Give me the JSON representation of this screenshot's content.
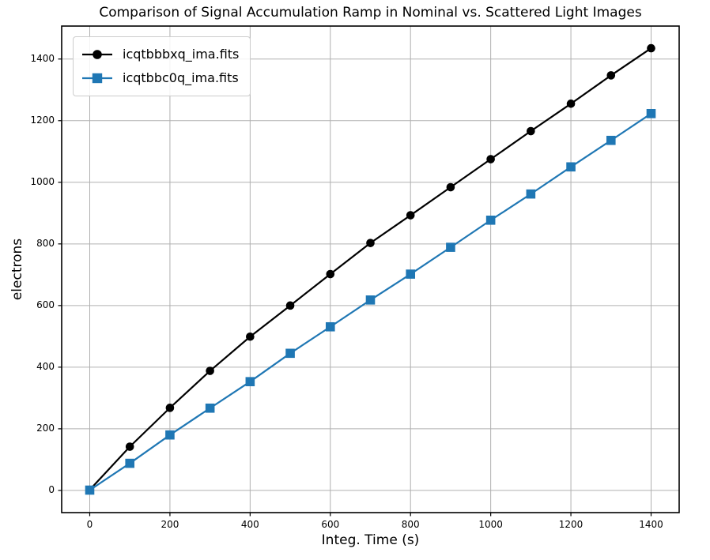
{
  "title": "Comparison of Signal Accumulation Ramp in Nominal vs. Scattered Light Images",
  "chart_data": {
    "type": "line",
    "title": "Comparison of Signal Accumulation Ramp in Nominal vs. Scattered Light Images",
    "xlabel": "Integ. Time (s)",
    "ylabel": "electrons",
    "x": [
      0,
      100,
      200,
      300,
      400,
      500,
      600,
      700,
      800,
      900,
      1000,
      1100,
      1200,
      1300,
      1400
    ],
    "series": [
      {
        "name": "icqtbbbxq_ima.fits",
        "color": "#000000",
        "marker": "circle",
        "values": [
          2,
          142,
          268,
          388,
          499,
          600,
          702,
          803,
          893,
          984,
          1075,
          1166,
          1255,
          1347,
          1435
        ]
      },
      {
        "name": "icqtbbc0q_ima.fits",
        "color": "#1f77b4",
        "marker": "square",
        "values": [
          1,
          88,
          180,
          267,
          353,
          445,
          531,
          618,
          702,
          789,
          877,
          962,
          1050,
          1136,
          1223
        ]
      }
    ],
    "xlim": [
      -70,
      1470
    ],
    "ylim": [
      -72,
      1507
    ],
    "xticks": [
      0,
      200,
      400,
      600,
      800,
      1000,
      1200,
      1400
    ],
    "yticks": [
      0,
      200,
      400,
      600,
      800,
      1000,
      1200,
      1400
    ],
    "grid": true,
    "grid_color": "#b0b0b0",
    "spine_color": "#000000",
    "background": "#ffffff",
    "legend_position": "upper left"
  }
}
